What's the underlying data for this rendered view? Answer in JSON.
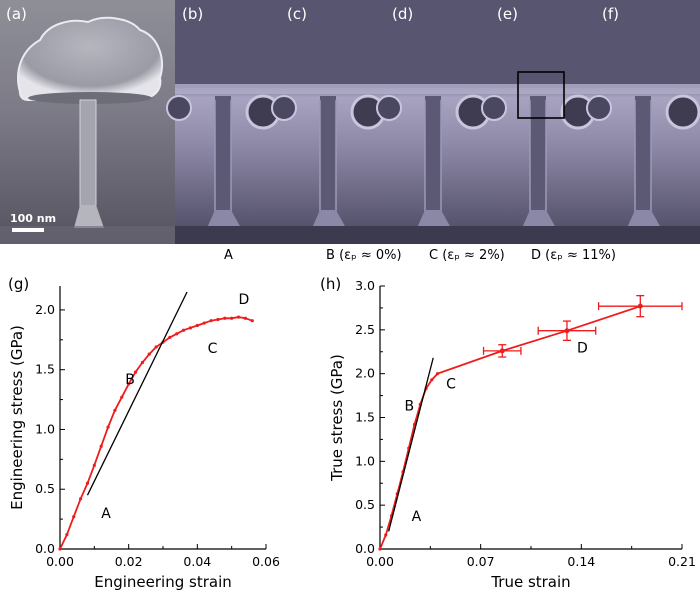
{
  "sem": {
    "panels": [
      {
        "label": "(a)"
      },
      {
        "label": "(b)"
      },
      {
        "label": "(c)"
      },
      {
        "label": "(d)"
      },
      {
        "label": "(e)"
      },
      {
        "label": "(f)"
      }
    ],
    "scale_bar_text": "100 nm",
    "state_labels": [
      {
        "letter": "A",
        "strain": ""
      },
      {
        "letter": "B",
        "strain": "(εₚ ≈ 0%)"
      },
      {
        "letter": "C",
        "strain": "(εₚ ≈ 2%)"
      },
      {
        "letter": "D",
        "strain": "(εₚ ≈ 11%)"
      }
    ]
  },
  "chart_data": [
    {
      "panel": "(g)",
      "type": "line",
      "xlabel": "Engineering strain",
      "ylabel": "Engineering stress (GPa)",
      "xlim": [
        0,
        0.06
      ],
      "ylim": [
        0,
        2.2
      ],
      "xticks": [
        "0.00",
        "0.02",
        "0.04",
        "0.06"
      ],
      "yticks": [
        "0.0",
        "0.5",
        "1.0",
        "1.5",
        "2.0"
      ],
      "series": [
        {
          "color": "#ee1c1c",
          "x": [
            0.0,
            0.002,
            0.004,
            0.006,
            0.008,
            0.01,
            0.012,
            0.014,
            0.016,
            0.018,
            0.02,
            0.022,
            0.024,
            0.026,
            0.028,
            0.03,
            0.032,
            0.034,
            0.036,
            0.038,
            0.04,
            0.042,
            0.044,
            0.046,
            0.048,
            0.05,
            0.052,
            0.054,
            0.056
          ],
          "y": [
            0.0,
            0.12,
            0.27,
            0.42,
            0.55,
            0.7,
            0.86,
            1.02,
            1.16,
            1.27,
            1.38,
            1.48,
            1.56,
            1.63,
            1.69,
            1.73,
            1.77,
            1.8,
            1.83,
            1.85,
            1.87,
            1.89,
            1.91,
            1.92,
            1.93,
            1.93,
            1.94,
            1.93,
            1.91
          ]
        }
      ],
      "fit_line": {
        "color": "#000000",
        "x": [
          0.008,
          0.037
        ],
        "y": [
          0.45,
          2.15
        ]
      },
      "annotations": [
        {
          "text": "A",
          "x": 0.012,
          "y": 0.26
        },
        {
          "text": "B",
          "x": 0.019,
          "y": 1.38
        },
        {
          "text": "C",
          "x": 0.043,
          "y": 1.64
        },
        {
          "text": "D",
          "x": 0.052,
          "y": 2.05
        }
      ]
    },
    {
      "panel": "(h)",
      "type": "line",
      "xlabel": "True strain",
      "ylabel": "True stress (GPa)",
      "xlim": [
        0,
        0.21
      ],
      "ylim": [
        0,
        3.0
      ],
      "xticks": [
        "0.00",
        "0.07",
        "0.14",
        "0.21"
      ],
      "yticks": [
        "0.0",
        "0.5",
        "1.0",
        "1.5",
        "2.0",
        "2.5",
        "3.0"
      ],
      "series": [
        {
          "color": "#ee1c1c",
          "x": [
            0.0,
            0.004,
            0.008,
            0.012,
            0.016,
            0.02,
            0.024,
            0.028,
            0.032,
            0.036,
            0.04,
            0.085,
            0.13,
            0.181
          ],
          "y": [
            0.0,
            0.16,
            0.38,
            0.63,
            0.88,
            1.15,
            1.42,
            1.65,
            1.83,
            1.93,
            2.0,
            2.26,
            2.49,
            2.77
          ]
        }
      ],
      "error_points": [
        {
          "x": 0.085,
          "y": 2.26,
          "xerr": 0.013,
          "yerr": 0.07
        },
        {
          "x": 0.13,
          "y": 2.49,
          "xerr": 0.02,
          "yerr": 0.11
        },
        {
          "x": 0.181,
          "y": 2.77,
          "xerr": 0.029,
          "yerr": 0.12
        }
      ],
      "fit_line": {
        "color": "#000000",
        "x": [
          0.006,
          0.037
        ],
        "y": [
          0.2,
          2.18
        ]
      },
      "annotations": [
        {
          "text": "A",
          "x": 0.022,
          "y": 0.32
        },
        {
          "text": "B",
          "x": 0.017,
          "y": 1.58
        },
        {
          "text": "C",
          "x": 0.046,
          "y": 1.83
        },
        {
          "text": "D",
          "x": 0.137,
          "y": 2.24
        }
      ]
    }
  ]
}
